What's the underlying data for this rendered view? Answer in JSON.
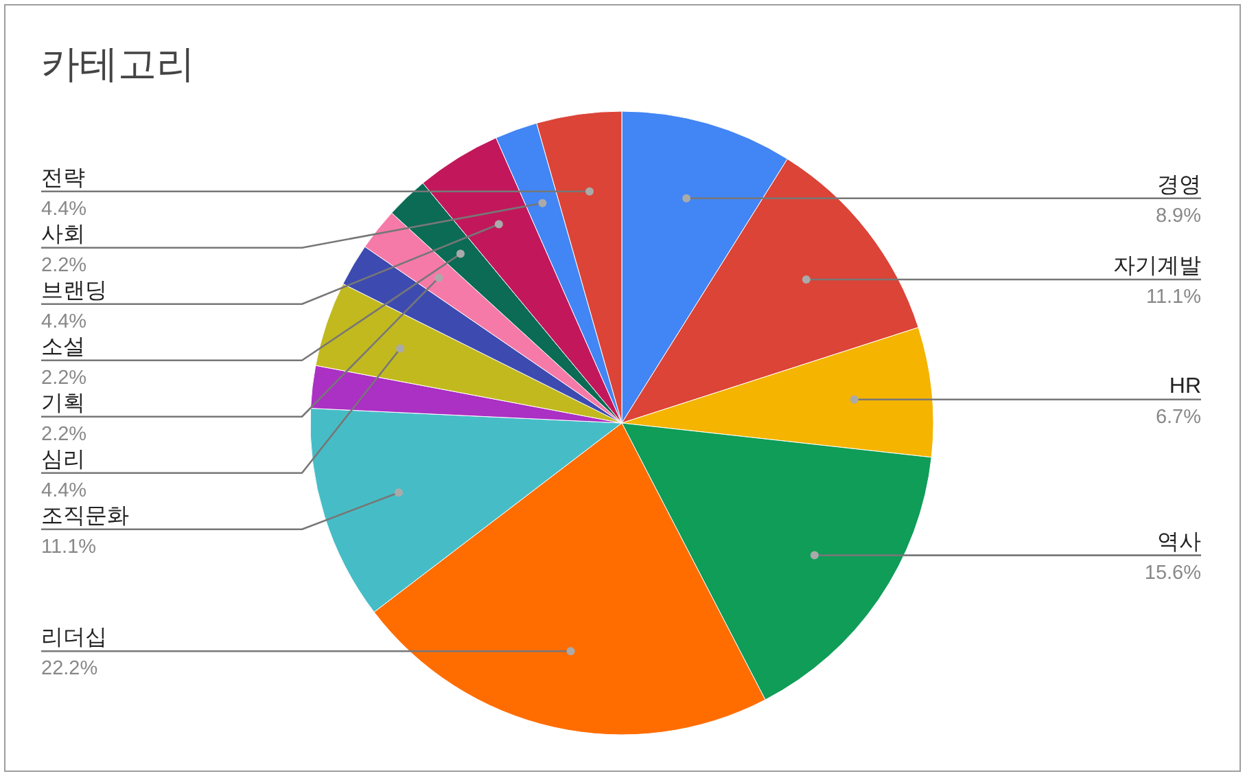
{
  "chart_data": {
    "type": "pie",
    "title": "카테고리",
    "categories": [
      "경영",
      "자기계발",
      "HR",
      "역사",
      "리더십",
      "조직문화",
      null,
      "심리",
      null,
      "기획",
      "소설",
      "브랜딩",
      "사회",
      "전략"
    ],
    "values": [
      8.9,
      11.1,
      6.7,
      15.6,
      22.2,
      11.1,
      2.2,
      4.4,
      2.2,
      2.2,
      2.2,
      4.4,
      2.2,
      4.4
    ],
    "value_labels": [
      "8.9%",
      "11.1%",
      "6.7%",
      "15.6%",
      "22.2%",
      "11.1%",
      null,
      "4.4%",
      null,
      "2.2%",
      "2.2%",
      "4.4%",
      "2.2%",
      "4.4%"
    ],
    "colors": [
      "#4285f4",
      "#db4437",
      "#f4b400",
      "#0f9d58",
      "#ff6d01",
      "#46bdc6",
      "#ab30c4",
      "#c2b91f",
      "#3d4bb0",
      "#f67aa8",
      "#0b6b55",
      "#c2185b",
      "#4285f4",
      "#db4437"
    ],
    "legend": false
  }
}
